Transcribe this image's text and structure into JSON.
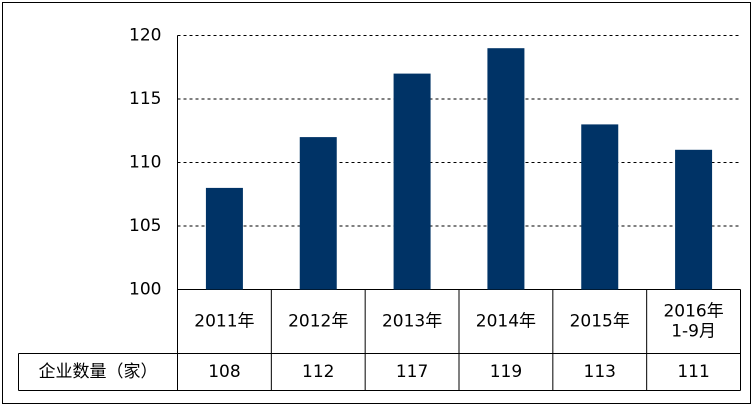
{
  "chart_data": {
    "type": "bar",
    "categories": [
      "2011年",
      "2012年",
      "2013年",
      "2014年",
      "2015年",
      "2016年\n1-9月"
    ],
    "series": [
      {
        "name": "企业数量（家）",
        "color": "#003366",
        "values": [
          108,
          112,
          117,
          119,
          113,
          111
        ]
      }
    ],
    "ylim": [
      100,
      120
    ],
    "yticks": [
      100,
      105,
      110,
      115,
      120
    ],
    "grid": true,
    "data_table": true
  }
}
